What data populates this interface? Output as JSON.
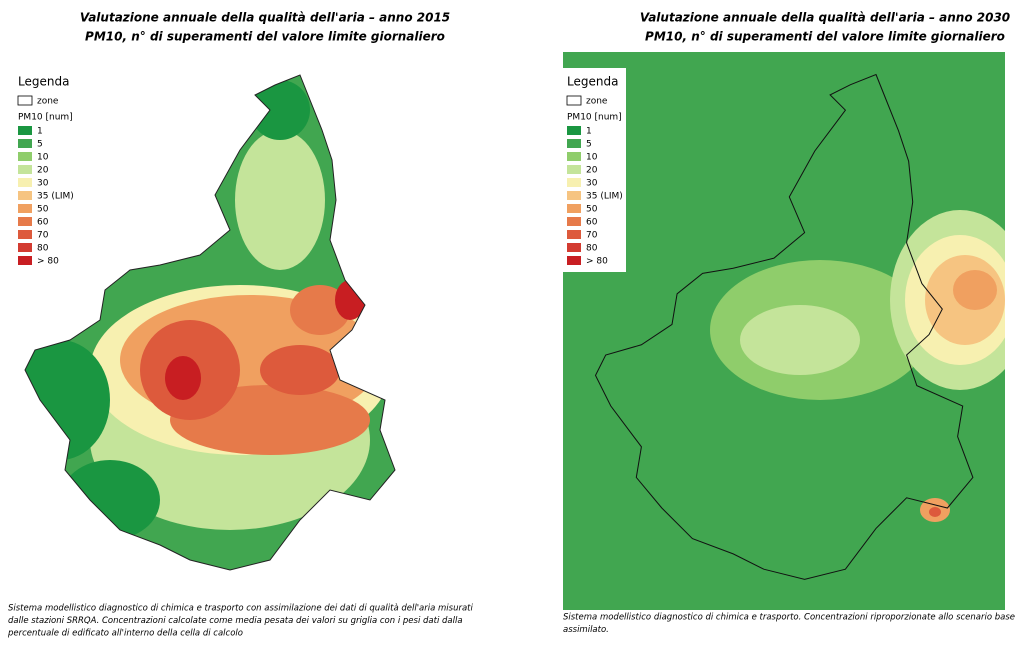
{
  "panels": [
    {
      "title_lines": [
        "Valutazione annuale della qualità dell'aria – anno 2015",
        "PM10, n° di superamenti del valore limite giornaliero"
      ],
      "legend": {
        "title": "Legenda",
        "zone": "zone",
        "unit": "PM10 [num]",
        "classes": [
          {
            "label": "1",
            "color": "#1a9641"
          },
          {
            "label": "5",
            "color": "#41a650"
          },
          {
            "label": "10",
            "color": "#8fcd6b"
          },
          {
            "label": "20",
            "color": "#c4e49a"
          },
          {
            "label": "30",
            "color": "#f7f0b0"
          },
          {
            "label": "35 (LIM)",
            "color": "#f6c481"
          },
          {
            "label": "50",
            "color": "#f0a060"
          },
          {
            "label": "60",
            "color": "#e67a4a"
          },
          {
            "label": "70",
            "color": "#dd5a3c"
          },
          {
            "label": "80",
            "color": "#d33b31"
          },
          {
            "label": "> 80",
            "color": "#c81e22"
          }
        ]
      },
      "caption_lines": [
        "Sistema modellistico diagnostico di chimica e trasporto con assimilazione dei dati di qualità dell'aria  misurati",
        "dalle stazioni SRRQA. Concentrazioni calcolate come media pesata dei valori su griglia con i pesi dati dalla",
        "percentuale di edificato all'interno della cella di calcolo"
      ]
    },
    {
      "title_lines": [
        "Valutazione annuale della qualità dell'aria – anno 2030",
        "PM10, n° di superamenti del valore limite giornaliero"
      ],
      "legend": {
        "title": "Legenda",
        "zone": "zone",
        "unit": "PM10 [num]",
        "classes": [
          {
            "label": "1",
            "color": "#1a9641"
          },
          {
            "label": "5",
            "color": "#41a650"
          },
          {
            "label": "10",
            "color": "#8fcd6b"
          },
          {
            "label": "20",
            "color": "#c4e49a"
          },
          {
            "label": "30",
            "color": "#f7f0b0"
          },
          {
            "label": "35 (LIM)",
            "color": "#f6c481"
          },
          {
            "label": "50",
            "color": "#f0a060"
          },
          {
            "label": "60",
            "color": "#e67a4a"
          },
          {
            "label": "70",
            "color": "#dd5a3c"
          },
          {
            "label": "80",
            "color": "#d33b31"
          },
          {
            "label": "> 80",
            "color": "#c81e22"
          }
        ]
      },
      "caption_lines": [
        "Sistema modellistico diagnostico di chimica e trasporto. Concentrazioni riproporzionate allo scenario base",
        "assimilato."
      ]
    }
  ]
}
